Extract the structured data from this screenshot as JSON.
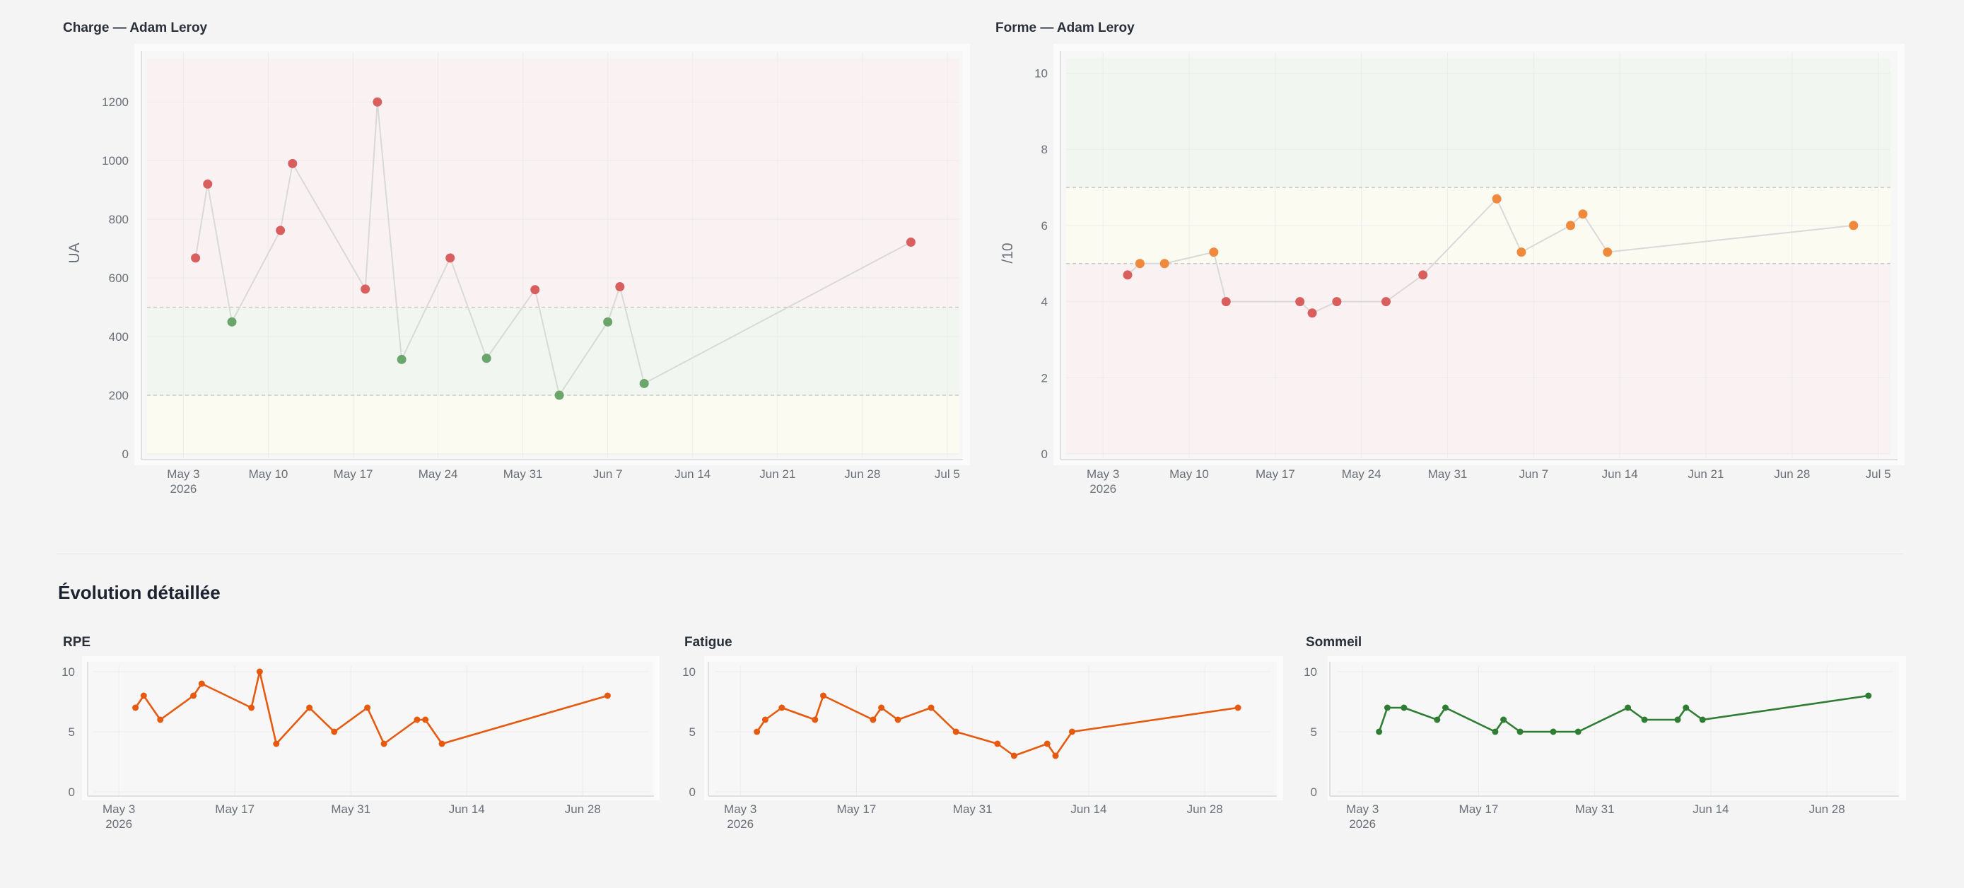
{
  "charts": {
    "charge": {
      "title": "Charge — Adam Leroy"
    },
    "forme": {
      "title": "Forme — Adam Leroy"
    }
  },
  "section": {
    "title": "Évolution détaillée"
  },
  "small": {
    "rpe": {
      "title": "RPE"
    },
    "fatigue": {
      "title": "Fatigue"
    },
    "sommeil": {
      "title": "Sommeil"
    }
  },
  "colors": {
    "red": "#d95f5f",
    "green": "#6aa56a",
    "orange": "#ef8a3c",
    "line_orange": "#e65a10",
    "line_green": "#2e7d32",
    "zone_red": "#faf2f2",
    "zone_green": "#f1f6f0",
    "zone_yellow": "#fcfbf1"
  },
  "chart_data": [
    {
      "type": "scatter",
      "title": "Charge — Adam Leroy",
      "ylabel": "UA",
      "ylim": [
        0,
        1350
      ],
      "yticks": [
        0,
        200,
        400,
        600,
        800,
        1000,
        1200
      ],
      "xlim": [
        "2026-04-30",
        "2026-07-06"
      ],
      "xticks": [
        "2026-05-03",
        "2026-05-10",
        "2026-05-17",
        "2026-05-24",
        "2026-05-31",
        "2026-06-07",
        "2026-06-14",
        "2026-06-21",
        "2026-06-28",
        "2026-07-05"
      ],
      "xticklabels": [
        "May 3",
        "May 10",
        "May 17",
        "May 24",
        "May 31",
        "Jun 7",
        "Jun 14",
        "Jun 21",
        "Jun 28",
        "Jul 5"
      ],
      "x_year_label": "2026",
      "zones": [
        {
          "from": 0,
          "to": 200,
          "color": "zone_yellow"
        },
        {
          "from": 200,
          "to": 500,
          "color": "zone_green"
        },
        {
          "from": 500,
          "to": 1350,
          "color": "zone_red"
        }
      ],
      "thresholds": [
        200,
        500
      ],
      "series": [
        {
          "x": [
            "2026-05-04",
            "2026-05-05",
            "2026-05-07",
            "2026-05-11",
            "2026-05-12",
            "2026-05-18",
            "2026-05-19",
            "2026-05-21",
            "2026-05-25",
            "2026-05-28",
            "2026-06-01",
            "2026-06-03",
            "2026-06-07",
            "2026-06-08",
            "2026-06-10",
            "2026-07-02"
          ],
          "y": [
            668,
            920,
            450,
            762,
            990,
            562,
            1200,
            322,
            668,
            326,
            560,
            200,
            450,
            570,
            240,
            722
          ],
          "colors": [
            "red",
            "red",
            "green",
            "red",
            "red",
            "red",
            "red",
            "green",
            "red",
            "green",
            "red",
            "green",
            "green",
            "red",
            "green",
            "red"
          ]
        }
      ]
    },
    {
      "type": "scatter",
      "title": "Forme — Adam Leroy",
      "ylabel": "/10",
      "ylim": [
        0,
        10.4
      ],
      "yticks": [
        0,
        2,
        4,
        6,
        8,
        10
      ],
      "xlim": [
        "2026-04-30",
        "2026-07-06"
      ],
      "xticks": [
        "2026-05-03",
        "2026-05-10",
        "2026-05-17",
        "2026-05-24",
        "2026-05-31",
        "2026-06-07",
        "2026-06-14",
        "2026-06-21",
        "2026-06-28",
        "2026-07-05"
      ],
      "xticklabels": [
        "May 3",
        "May 10",
        "May 17",
        "May 24",
        "May 31",
        "Jun 7",
        "Jun 14",
        "Jun 21",
        "Jun 28",
        "Jul 5"
      ],
      "x_year_label": "2026",
      "zones": [
        {
          "from": 0,
          "to": 5,
          "color": "zone_red"
        },
        {
          "from": 5,
          "to": 7,
          "color": "zone_yellow"
        },
        {
          "from": 7,
          "to": 10.4,
          "color": "zone_green"
        }
      ],
      "thresholds": [
        5,
        7
      ],
      "series": [
        {
          "x": [
            "2026-05-05",
            "2026-05-06",
            "2026-05-08",
            "2026-05-12",
            "2026-05-13",
            "2026-05-19",
            "2026-05-20",
            "2026-05-22",
            "2026-05-26",
            "2026-05-29",
            "2026-06-04",
            "2026-06-06",
            "2026-06-10",
            "2026-06-11",
            "2026-06-13",
            "2026-07-03"
          ],
          "y": [
            4.7,
            5.0,
            5.0,
            5.3,
            4.0,
            4.0,
            3.7,
            4.0,
            4.0,
            4.7,
            6.7,
            5.3,
            6.0,
            6.3,
            5.3,
            6.0
          ],
          "colors": [
            "red",
            "orange",
            "orange",
            "orange",
            "red",
            "red",
            "red",
            "red",
            "red",
            "red",
            "orange",
            "orange",
            "orange",
            "orange",
            "orange",
            "orange"
          ]
        }
      ]
    },
    {
      "type": "line",
      "title": "RPE",
      "ylim": [
        0,
        10
      ],
      "yticks": [
        0,
        5,
        10
      ],
      "xlim": [
        "2026-04-30",
        "2026-07-06"
      ],
      "xticks": [
        "2026-05-03",
        "2026-05-17",
        "2026-05-31",
        "2026-06-14",
        "2026-06-28"
      ],
      "xticklabels": [
        "May 3",
        "May 17",
        "May 31",
        "Jun 14",
        "Jun 28"
      ],
      "x_year_label": "2026",
      "series": [
        {
          "color": "line_orange",
          "x": [
            "2026-05-05",
            "2026-05-06",
            "2026-05-08",
            "2026-05-12",
            "2026-05-13",
            "2026-05-19",
            "2026-05-20",
            "2026-05-22",
            "2026-05-26",
            "2026-05-29",
            "2026-06-02",
            "2026-06-04",
            "2026-06-08",
            "2026-06-09",
            "2026-06-11",
            "2026-07-01"
          ],
          "y": [
            7,
            8,
            6,
            8,
            9,
            7,
            10,
            4,
            7,
            5,
            7,
            4,
            6,
            6,
            4,
            8
          ]
        }
      ]
    },
    {
      "type": "line",
      "title": "Fatigue",
      "ylim": [
        0,
        10
      ],
      "yticks": [
        0,
        5,
        10
      ],
      "xlim": [
        "2026-04-30",
        "2026-07-06"
      ],
      "xticks": [
        "2026-05-03",
        "2026-05-17",
        "2026-05-31",
        "2026-06-14",
        "2026-06-28"
      ],
      "xticklabels": [
        "May 3",
        "May 17",
        "May 31",
        "Jun 14",
        "Jun 28"
      ],
      "x_year_label": "2026",
      "series": [
        {
          "color": "line_orange",
          "x": [
            "2026-05-05",
            "2026-05-06",
            "2026-05-08",
            "2026-05-12",
            "2026-05-13",
            "2026-05-19",
            "2026-05-20",
            "2026-05-22",
            "2026-05-26",
            "2026-05-29",
            "2026-06-03",
            "2026-06-05",
            "2026-06-09",
            "2026-06-10",
            "2026-06-12",
            "2026-07-02"
          ],
          "y": [
            5,
            6,
            7,
            6,
            8,
            6,
            7,
            6,
            7,
            5,
            4,
            3,
            4,
            3,
            5,
            7
          ]
        }
      ]
    },
    {
      "type": "line",
      "title": "Sommeil",
      "ylim": [
        0,
        10
      ],
      "yticks": [
        0,
        5,
        10
      ],
      "xlim": [
        "2026-04-30",
        "2026-07-06"
      ],
      "xticks": [
        "2026-05-03",
        "2026-05-17",
        "2026-05-31",
        "2026-06-14",
        "2026-06-28"
      ],
      "xticklabels": [
        "May 3",
        "May 17",
        "May 31",
        "Jun 14",
        "Jun 28"
      ],
      "x_year_label": "2026",
      "series": [
        {
          "color": "line_green",
          "x": [
            "2026-05-05",
            "2026-05-06",
            "2026-05-08",
            "2026-05-12",
            "2026-05-13",
            "2026-05-19",
            "2026-05-20",
            "2026-05-22",
            "2026-05-26",
            "2026-05-29",
            "2026-06-04",
            "2026-06-06",
            "2026-06-10",
            "2026-06-11",
            "2026-06-13",
            "2026-07-03"
          ],
          "y": [
            5,
            7,
            7,
            6,
            7,
            5,
            6,
            5,
            5,
            5,
            7,
            6,
            6,
            7,
            6,
            8
          ]
        }
      ]
    }
  ]
}
